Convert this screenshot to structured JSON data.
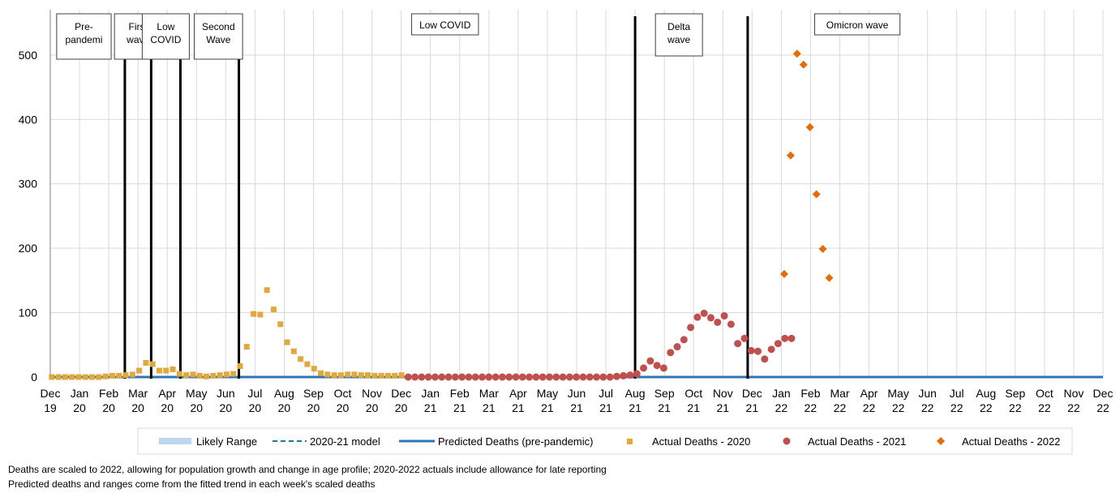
{
  "chart_data": {
    "type": "scatter",
    "title": "",
    "xlabel": "",
    "ylabel": "",
    "ylim": [
      0,
      520
    ],
    "yticks": [
      0,
      100,
      200,
      300,
      400,
      500
    ],
    "grid": true,
    "legend_position": "bottom",
    "x_tick_labels": [
      [
        "Dec",
        "19"
      ],
      [
        "Jan",
        "20"
      ],
      [
        "Feb",
        "20"
      ],
      [
        "Mar",
        "20"
      ],
      [
        "Apr",
        "20"
      ],
      [
        "May",
        "20"
      ],
      [
        "Jun",
        "20"
      ],
      [
        "Jul",
        "20"
      ],
      [
        "Aug",
        "20"
      ],
      [
        "Sep",
        "20"
      ],
      [
        "Oct",
        "20"
      ],
      [
        "Nov",
        "20"
      ],
      [
        "Dec",
        "20"
      ],
      [
        "Jan",
        "21"
      ],
      [
        "Feb",
        "21"
      ],
      [
        "Mar",
        "21"
      ],
      [
        "Apr",
        "21"
      ],
      [
        "May",
        "21"
      ],
      [
        "Jun",
        "21"
      ],
      [
        "Jul",
        "21"
      ],
      [
        "Aug",
        "21"
      ],
      [
        "Sep",
        "21"
      ],
      [
        "Oct",
        "21"
      ],
      [
        "Nov",
        "21"
      ],
      [
        "Dec",
        "21"
      ],
      [
        "Jan",
        "22"
      ],
      [
        "Feb",
        "22"
      ],
      [
        "Mar",
        "22"
      ],
      [
        "Apr",
        "22"
      ],
      [
        "May",
        "22"
      ],
      [
        "Jun",
        "22"
      ],
      [
        "Jul",
        "22"
      ],
      [
        "Aug",
        "22"
      ],
      [
        "Sep",
        "22"
      ],
      [
        "Oct",
        "22"
      ],
      [
        "Nov",
        "22"
      ],
      [
        "Dec",
        "22"
      ]
    ],
    "period_dividers": [
      2.55,
      3.45,
      4.45,
      6.45,
      20.0,
      23.85
    ],
    "period_labels": [
      {
        "text": [
          "Pre-",
          "pandemi"
        ],
        "x": 1.15,
        "y_top": 540,
        "y_bottom": 475
      },
      {
        "text": [
          "First",
          "wave"
        ],
        "x": 3.0,
        "y_top": 540,
        "y_bottom": 475
      },
      {
        "text": [
          "Low",
          "COVID"
        ],
        "x": 3.95,
        "y_top": 540,
        "y_bottom": 475
      },
      {
        "text": [
          "Second",
          "Wave"
        ],
        "x": 5.75,
        "y_top": 540,
        "y_bottom": 475
      },
      {
        "text": [
          "Low COVID"
        ],
        "x": 13.5,
        "y_top": 540,
        "y_bottom": 510
      },
      {
        "text": [
          "Delta",
          "wave"
        ],
        "x": 21.5,
        "y_top": 540,
        "y_bottom": 476
      },
      {
        "text": [
          "Omicron wave"
        ],
        "x": 27.6,
        "y_top": 540,
        "y_bottom": 510
      }
    ],
    "series": [
      {
        "name": "Likely Range",
        "kind": "band",
        "color": "#bdd7ee",
        "x": [
          0,
          36
        ],
        "low": [
          0,
          0
        ],
        "high": [
          1,
          1
        ]
      },
      {
        "name": "2020-21 model",
        "kind": "dashed-line",
        "color": "#1f7b8c",
        "x": [
          0,
          36
        ],
        "values": [
          0,
          0
        ]
      },
      {
        "name": "Predicted Deaths (pre-pandemic)",
        "kind": "line",
        "color": "#2e75b6",
        "x": [
          0,
          36
        ],
        "values": [
          0,
          0
        ]
      },
      {
        "name": "Actual Deaths - 2020",
        "kind": "square",
        "color": "#e0a93e",
        "x": [
          0.05,
          0.28,
          0.51,
          0.74,
          0.97,
          1.2,
          1.43,
          1.66,
          1.89,
          2.12,
          2.35,
          2.58,
          2.81,
          3.04,
          3.27,
          3.5,
          3.73,
          3.96,
          4.19,
          4.42,
          4.65,
          4.88,
          5.11,
          5.34,
          5.57,
          5.8,
          6.03,
          6.26,
          6.49,
          6.72,
          6.95,
          7.18,
          7.41,
          7.64,
          7.87,
          8.1,
          8.33,
          8.56,
          8.79,
          9.02,
          9.25,
          9.48,
          9.71,
          9.94,
          10.17,
          10.4,
          10.63,
          10.86,
          11.09,
          11.32,
          11.55,
          11.78,
          12.01
        ],
        "values": [
          0,
          0,
          0,
          0,
          0,
          0,
          0,
          0,
          1,
          2,
          2,
          3,
          4,
          10,
          22,
          20,
          10,
          10,
          12,
          5,
          3,
          4,
          2,
          1,
          2,
          3,
          4,
          5,
          17,
          47,
          98,
          97,
          135,
          105,
          82,
          54,
          40,
          28,
          20,
          13,
          6,
          4,
          3,
          3,
          4,
          4,
          3,
          3,
          2,
          2,
          2,
          2,
          3
        ]
      },
      {
        "name": "Actual Deaths - 2021",
        "kind": "circle",
        "color": "#c0504d",
        "x": [
          12.24,
          12.47,
          12.7,
          12.93,
          13.16,
          13.39,
          13.62,
          13.85,
          14.08,
          14.31,
          14.54,
          14.77,
          15.0,
          15.23,
          15.46,
          15.69,
          15.92,
          16.15,
          16.38,
          16.61,
          16.84,
          17.07,
          17.3,
          17.53,
          17.76,
          17.99,
          18.22,
          18.45,
          18.68,
          18.91,
          19.14,
          19.37,
          19.6,
          19.83,
          20.06,
          20.29,
          20.52,
          20.75,
          20.98,
          21.21,
          21.44,
          21.67,
          21.9,
          22.13,
          22.36,
          22.59,
          22.82,
          23.05,
          23.28,
          23.51,
          23.74,
          23.97,
          24.2,
          24.43,
          24.66,
          24.89,
          25.12,
          25.35
        ],
        "values": [
          0,
          0,
          0,
          0,
          0,
          0,
          0,
          0,
          0,
          0,
          0,
          0,
          0,
          0,
          0,
          0,
          0,
          0,
          0,
          0,
          0,
          0,
          0,
          0,
          0,
          0,
          0,
          0,
          0,
          0,
          0,
          1,
          2,
          3,
          5,
          14,
          25,
          18,
          14,
          38,
          47,
          58,
          77,
          93,
          99,
          92,
          85,
          95,
          82,
          52,
          60,
          41,
          40,
          28,
          43,
          52,
          60,
          60
        ]
      },
      {
        "name": "Actual Deaths - 2022",
        "kind": "diamond",
        "color": "#e46c0a",
        "x": [
          25.1,
          25.32,
          25.54,
          25.76,
          25.98,
          26.2,
          26.42
        ],
        "values": [
          160,
          344,
          502,
          485,
          388,
          284,
          199
        ]
      }
    ],
    "series_extra": {
      "Actual Deaths - 2022": {
        "x": [
          26.64
        ],
        "values": [
          154
        ]
      }
    }
  },
  "footnotes": [
    "Deaths are scaled to 2022,  allowing for population growth and change in age profile; 2020-2022  actuals include allowance for late reporting",
    "Predicted deaths and ranges come from the fitted trend in each week's scaled deaths"
  ],
  "colors": {
    "grid": "#d9d9d9",
    "axis": "#808080",
    "divider": "#000000",
    "legend_border": "#d9d9d9"
  }
}
